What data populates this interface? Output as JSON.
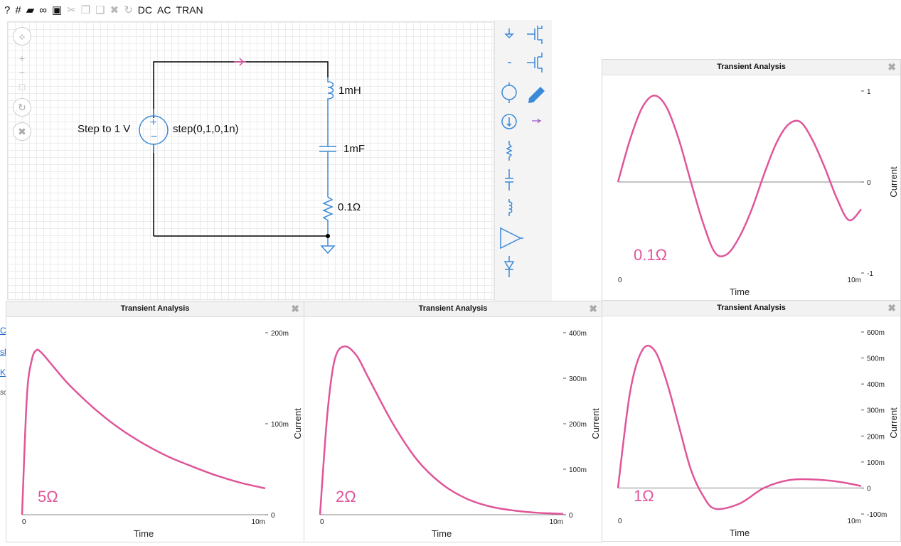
{
  "toolbar": {
    "items": [
      {
        "name": "help-icon",
        "glyph": "?",
        "enabled": true
      },
      {
        "name": "grid-icon",
        "glyph": "#",
        "enabled": true
      },
      {
        "name": "open-folder-icon",
        "glyph": "▰",
        "enabled": true
      },
      {
        "name": "link-icon",
        "glyph": "∞",
        "enabled": true
      },
      {
        "name": "save-icon",
        "glyph": "▣",
        "enabled": true
      },
      {
        "name": "cut-icon",
        "glyph": "✂",
        "enabled": false
      },
      {
        "name": "copy-icon",
        "glyph": "❐",
        "enabled": false
      },
      {
        "name": "paste-icon",
        "glyph": "❑",
        "enabled": false
      },
      {
        "name": "delete-icon",
        "glyph": "✖",
        "enabled": false
      },
      {
        "name": "redo-icon",
        "glyph": "↻",
        "enabled": false
      }
    ],
    "dc_label": "DC",
    "ac_label": "AC",
    "tran_label": "TRAN"
  },
  "zoom_controls": {
    "pan": "⟡",
    "zoom_in": "+",
    "zoom_out": "−",
    "fit": "□",
    "rotate": "↻",
    "delete": "✖"
  },
  "schematic": {
    "source_name": "Step to 1 V",
    "source_value": "step(0,1,0,1n)",
    "inductor_label": "1mH",
    "capacitor_label": "1mF",
    "resistor_label": "0.1Ω"
  },
  "side_links": [
    "C",
    "sl",
    "K",
    "sc"
  ],
  "colors": {
    "wire": "#000000",
    "component": "#3b8ad9",
    "trace": "#e0559a",
    "zero_line": "#888888",
    "probe": "#d6509c"
  },
  "panels": [
    {
      "id": "tr",
      "title": "Transient Analysis",
      "resistance_label": "0.1Ω",
      "xlabel": "Time",
      "ylabel": "Current",
      "x_ticks": [
        "0",
        "10m"
      ],
      "y_ticks": [
        "1",
        "0",
        "-1"
      ]
    },
    {
      "id": "bl",
      "title": "Transient Analysis",
      "resistance_label": "5Ω",
      "xlabel": "Time",
      "ylabel": "Current",
      "x_ticks": [
        "0",
        "10m"
      ],
      "y_ticks": [
        "200m",
        "100m",
        "0"
      ]
    },
    {
      "id": "bm",
      "title": "Transient Analysis",
      "resistance_label": "2Ω",
      "xlabel": "Time",
      "ylabel": "Current",
      "x_ticks": [
        "0",
        "10m"
      ],
      "y_ticks": [
        "400m",
        "300m",
        "200m",
        "100m",
        "0"
      ]
    },
    {
      "id": "br",
      "title": "Transient Analysis",
      "resistance_label": "1Ω",
      "xlabel": "Time",
      "ylabel": "Current",
      "x_ticks": [
        "0",
        "10m"
      ],
      "y_ticks": [
        "600m",
        "500m",
        "400m",
        "300m",
        "200m",
        "100m",
        "0",
        "-100m"
      ]
    }
  ],
  "chart_data": [
    {
      "type": "line",
      "title": "Transient Analysis",
      "xlabel": "Time",
      "ylabel": "Current",
      "xlim": [
        0,
        0.01
      ],
      "ylim": [
        -1,
        1
      ],
      "series": [
        {
          "name": "0.1Ω",
          "x": [
            0,
            0.0005,
            0.001,
            0.0015,
            0.002,
            0.0025,
            0.003,
            0.0035,
            0.004,
            0.0045,
            0.005,
            0.0055,
            0.006,
            0.0065,
            0.007,
            0.0075,
            0.008,
            0.0085,
            0.009,
            0.0095,
            0.01
          ],
          "y": [
            0,
            0.47,
            0.82,
            0.95,
            0.82,
            0.47,
            0,
            -0.45,
            -0.78,
            -0.79,
            -0.6,
            -0.3,
            0.08,
            0.42,
            0.63,
            0.66,
            0.46,
            0.16,
            -0.18,
            -0.42,
            -0.3
          ]
        }
      ]
    },
    {
      "type": "line",
      "title": "Transient Analysis",
      "xlabel": "Time",
      "ylabel": "Current",
      "xlim": [
        0,
        0.01
      ],
      "ylim": [
        0,
        0.2
      ],
      "series": [
        {
          "name": "5Ω",
          "x": [
            0,
            0.0002,
            0.0004,
            0.0006,
            0.0008,
            0.001,
            0.0015,
            0.002,
            0.003,
            0.004,
            0.005,
            0.006,
            0.007,
            0.008,
            0.009,
            0.01
          ],
          "y": [
            0,
            0.13,
            0.17,
            0.181,
            0.178,
            0.172,
            0.156,
            0.141,
            0.116,
            0.095,
            0.078,
            0.064,
            0.053,
            0.043,
            0.035,
            0.029
          ]
        }
      ]
    },
    {
      "type": "line",
      "title": "Transient Analysis",
      "xlabel": "Time",
      "ylabel": "Current",
      "xlim": [
        0,
        0.01
      ],
      "ylim": [
        0,
        0.4
      ],
      "series": [
        {
          "name": "2Ω",
          "x": [
            0,
            0.0003,
            0.0006,
            0.001,
            0.0015,
            0.002,
            0.003,
            0.004,
            0.005,
            0.006,
            0.007,
            0.008,
            0.009,
            0.01
          ],
          "y": [
            0,
            0.22,
            0.34,
            0.37,
            0.35,
            0.3,
            0.2,
            0.12,
            0.068,
            0.036,
            0.018,
            0.009,
            0.004,
            0.002
          ]
        }
      ]
    },
    {
      "type": "line",
      "title": "Transient Analysis",
      "xlabel": "Time",
      "ylabel": "Current",
      "xlim": [
        0,
        0.01
      ],
      "ylim": [
        -0.1,
        0.6
      ],
      "series": [
        {
          "name": "1Ω",
          "x": [
            0,
            0.0005,
            0.001,
            0.0015,
            0.002,
            0.0025,
            0.003,
            0.0035,
            0.004,
            0.005,
            0.006,
            0.007,
            0.008,
            0.009,
            0.01
          ],
          "y": [
            0,
            0.37,
            0.53,
            0.53,
            0.41,
            0.24,
            0.07,
            -0.03,
            -0.08,
            -0.06,
            0.0,
            0.03,
            0.033,
            0.025,
            0.008
          ]
        }
      ]
    }
  ]
}
